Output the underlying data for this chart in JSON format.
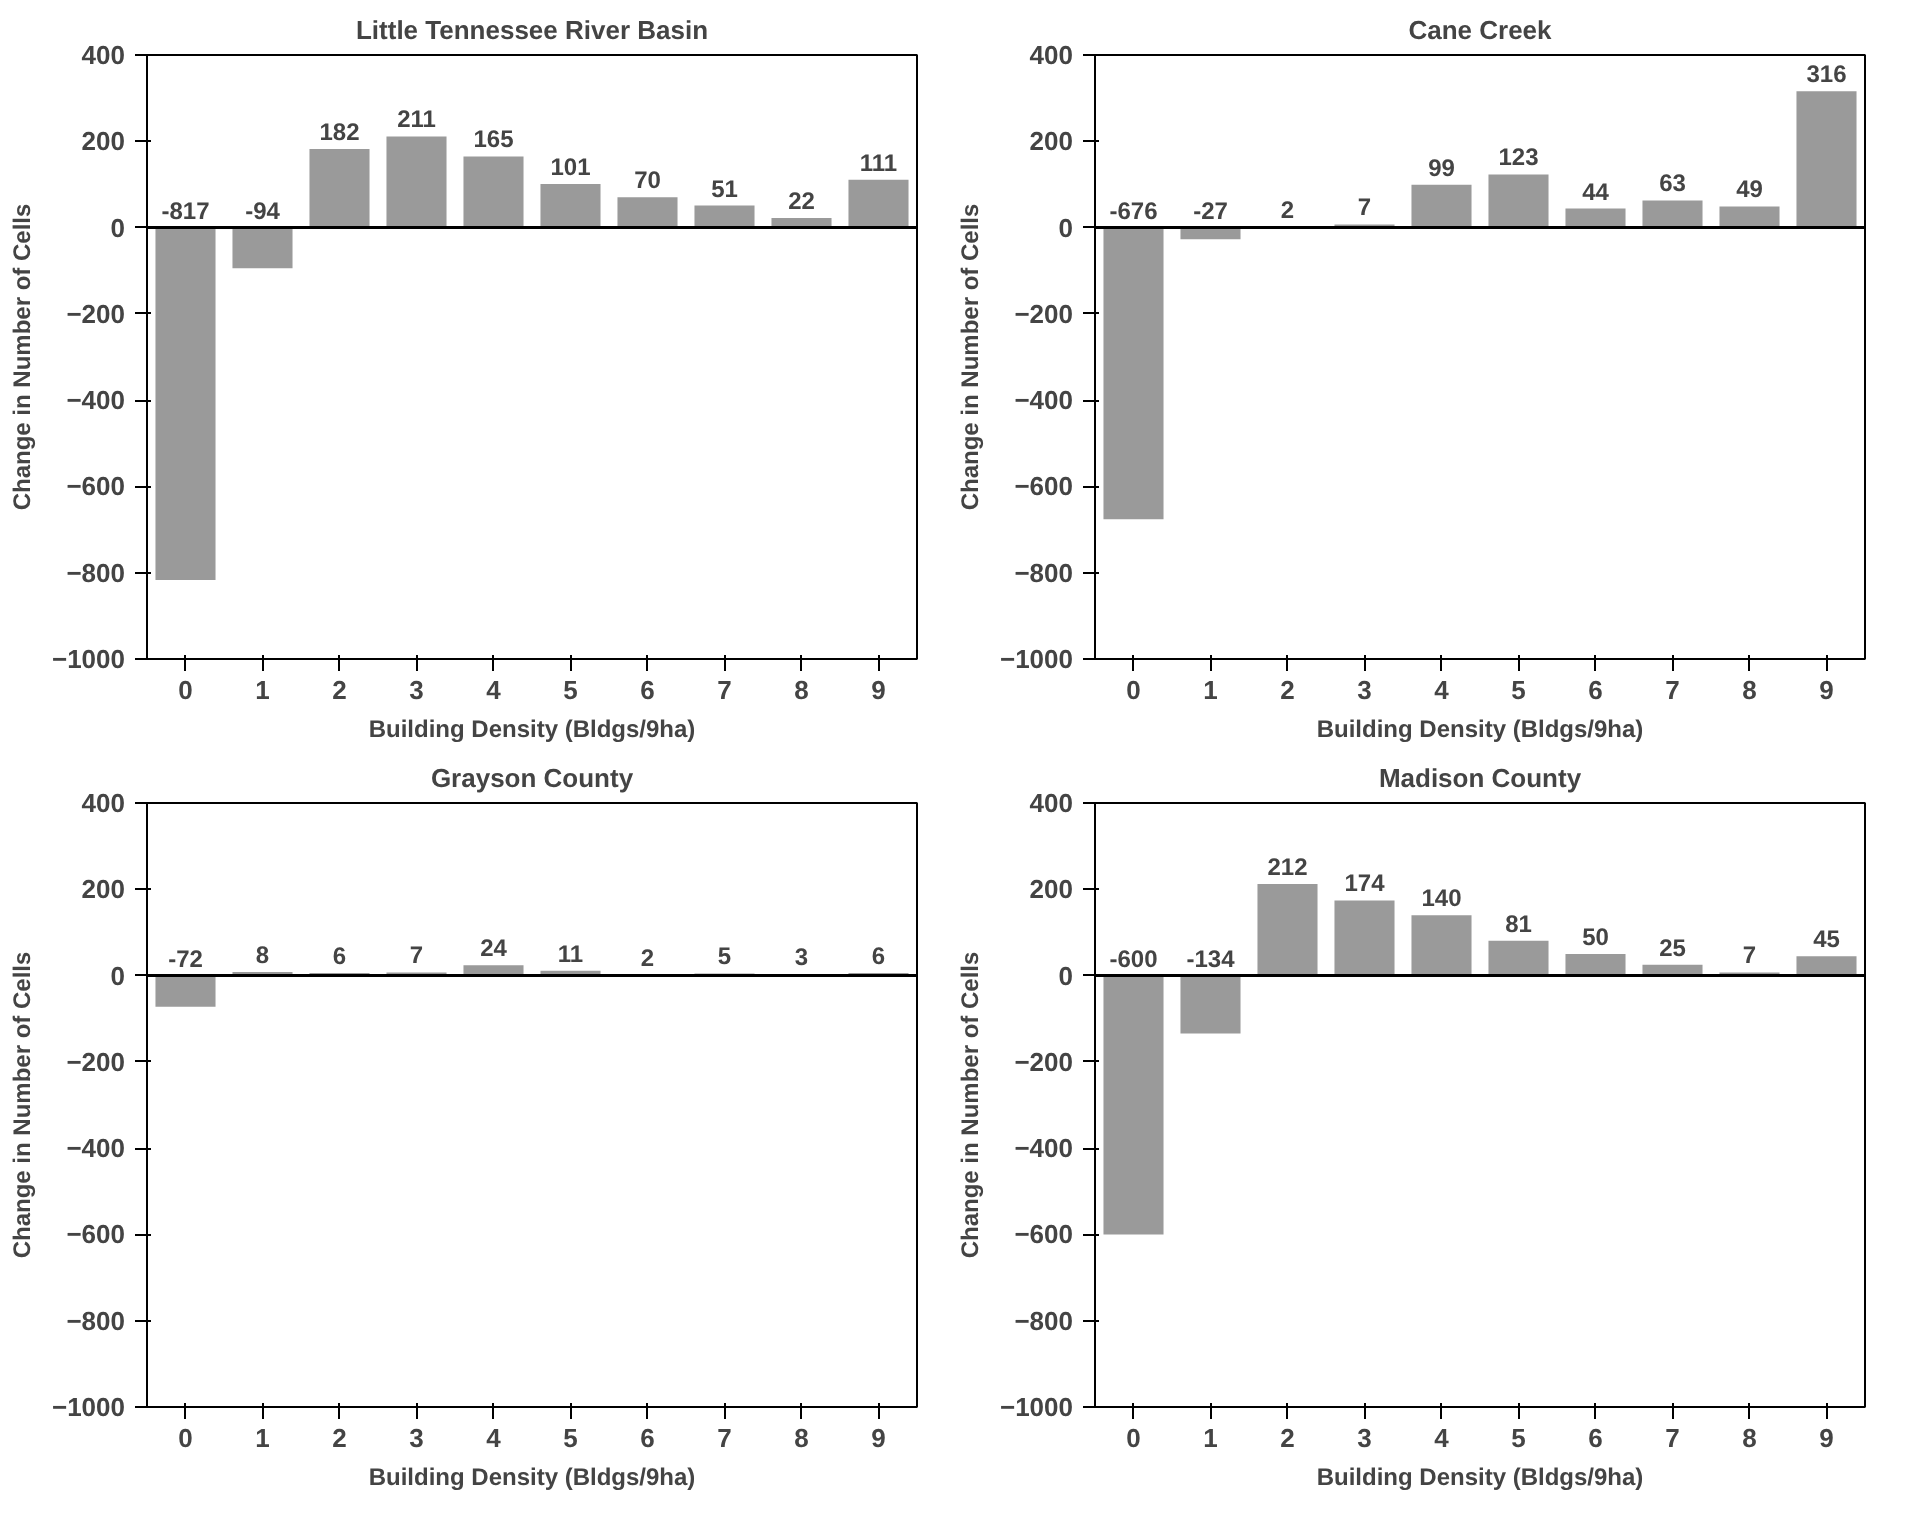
{
  "chart_data": [
    {
      "type": "bar",
      "title": "Little Tennessee River Basin",
      "xlabel": "Building Density (Bldgs/9ha)",
      "ylabel": "Change in Number of Cells",
      "categories": [
        "0",
        "1",
        "2",
        "3",
        "4",
        "5",
        "6",
        "7",
        "8",
        "9"
      ],
      "values": [
        -817,
        -94,
        182,
        211,
        165,
        101,
        70,
        51,
        22,
        111
      ],
      "ref_lines": [
        {
          "axis": "y",
          "value": 0,
          "color": "#000000"
        }
      ],
      "color": "#9a9a9a",
      "ylim": [
        -1000,
        400
      ],
      "yticks": [
        -1000,
        -800,
        -600,
        -400,
        -200,
        0,
        200,
        400
      ],
      "grid": false,
      "data_labels": true
    },
    {
      "type": "bar",
      "title": "Cane Creek",
      "xlabel": "Building Density (Bldgs/9ha)",
      "ylabel": "Change in Number of Cells",
      "categories": [
        "0",
        "1",
        "2",
        "3",
        "4",
        "5",
        "6",
        "7",
        "8",
        "9"
      ],
      "values": [
        -676,
        -27,
        2,
        7,
        99,
        123,
        44,
        63,
        49,
        316
      ],
      "ref_lines": [
        {
          "axis": "y",
          "value": 0,
          "color": "#000000"
        }
      ],
      "color": "#9a9a9a",
      "ylim": [
        -1000,
        400
      ],
      "yticks": [
        -1000,
        -800,
        -600,
        -400,
        -200,
        0,
        200,
        400
      ],
      "grid": false,
      "data_labels": true
    },
    {
      "type": "bar",
      "title": "Grayson County",
      "xlabel": "Building Density (Bldgs/9ha)",
      "ylabel": "Change in Number of Cells",
      "categories": [
        "0",
        "1",
        "2",
        "3",
        "4",
        "5",
        "6",
        "7",
        "8",
        "9"
      ],
      "values": [
        -72,
        8,
        6,
        7,
        24,
        11,
        2,
        5,
        3,
        6
      ],
      "ref_lines": [
        {
          "axis": "y",
          "value": 0,
          "color": "#000000"
        }
      ],
      "color": "#9a9a9a",
      "ylim": [
        -1000,
        400
      ],
      "yticks": [
        -1000,
        -800,
        -600,
        -400,
        -200,
        0,
        200,
        400
      ],
      "grid": false,
      "data_labels": true
    },
    {
      "type": "bar",
      "title": "Madison County",
      "xlabel": "Building Density (Bldgs/9ha)",
      "ylabel": "Change in Number of Cells",
      "categories": [
        "0",
        "1",
        "2",
        "3",
        "4",
        "5",
        "6",
        "7",
        "8",
        "9"
      ],
      "values": [
        -600,
        -134,
        212,
        174,
        140,
        81,
        50,
        25,
        7,
        45
      ],
      "ref_lines": [
        {
          "axis": "y",
          "value": 0,
          "color": "#000000"
        }
      ],
      "color": "#9a9a9a",
      "ylim": [
        -1000,
        400
      ],
      "yticks": [
        -1000,
        -800,
        -600,
        -400,
        -200,
        0,
        200,
        400
      ],
      "grid": false,
      "data_labels": true
    }
  ]
}
